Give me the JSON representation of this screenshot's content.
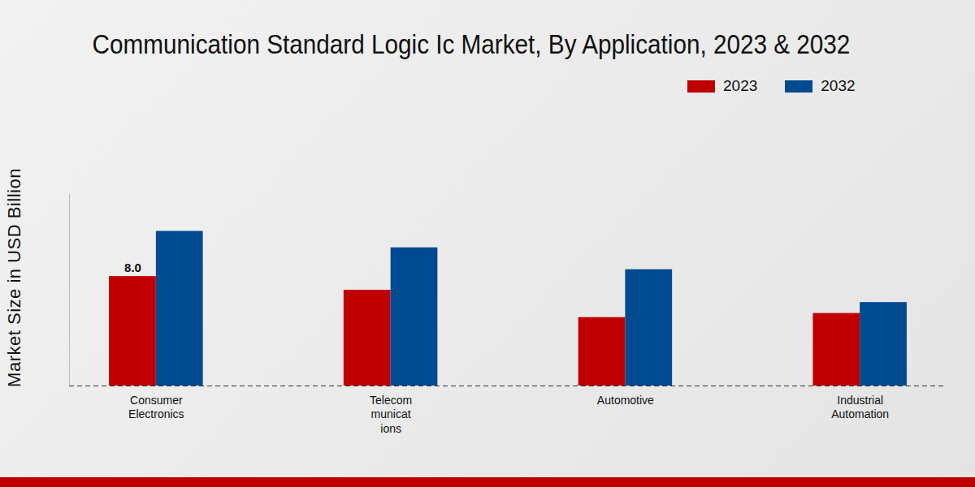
{
  "chart_data": {
    "type": "bar",
    "title": "Communication Standard Logic Ic Market, By Application, 2023 & 2032",
    "y_label": "Market Size in USD Billion",
    "categories": [
      "Consumer\nElectronics",
      "Telecom\nmunicat\nions",
      "Automotive",
      "Industrial\nAutomation"
    ],
    "series": [
      {
        "name": "2023",
        "color": "#c00000",
        "values": [
          8.0,
          7.0,
          5.0,
          5.3
        ],
        "value_labels": [
          "8.0",
          null,
          null,
          null
        ]
      },
      {
        "name": "2032",
        "color": "#004a8f",
        "values": [
          11.3,
          10.1,
          8.5,
          6.1
        ]
      }
    ],
    "ylim": [
      0,
      14
    ],
    "yticks": [],
    "grid": false,
    "legend": "top-right",
    "data_labels": true,
    "tick_labels": "x"
  }
}
